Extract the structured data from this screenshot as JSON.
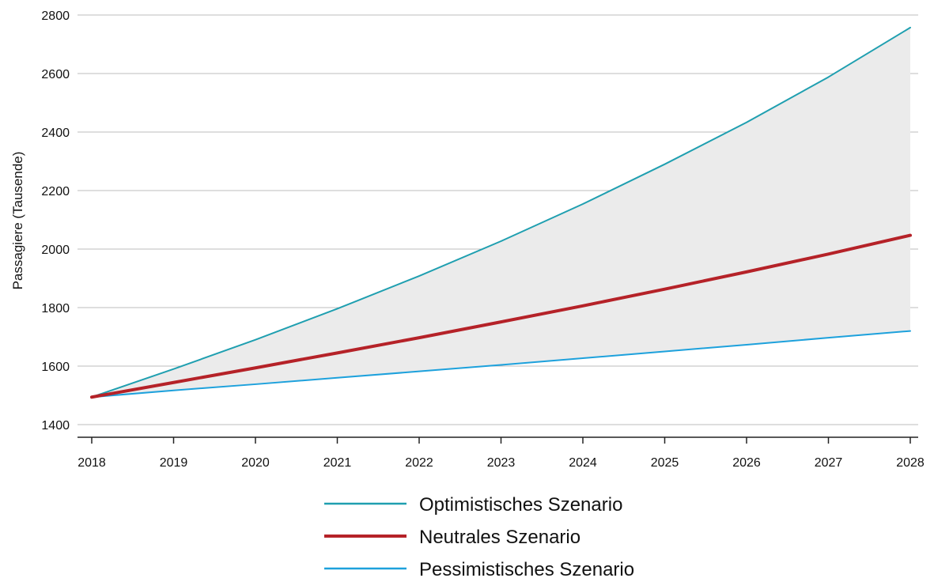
{
  "chart_data": {
    "type": "line",
    "title": "",
    "xlabel": "",
    "ylabel": "Passagiere (Tausende)",
    "x": [
      "2018",
      "2019",
      "2020",
      "2021",
      "2022",
      "2023",
      "2024",
      "2025",
      "2026",
      "2027",
      "2028"
    ],
    "ylim": [
      1400,
      2800
    ],
    "yticks": [
      "1400",
      "1600",
      "1800",
      "2000",
      "2200",
      "2400",
      "2600",
      "2800"
    ],
    "grid": "horizontal",
    "band": "shaded range between optimistic and pessimistic scenario",
    "legend_position": "bottom-center",
    "series": [
      {
        "name": "Optimistisches Szenario",
        "color": "#1f9fb0",
        "width": "thin",
        "values": [
          1494,
          1590,
          1690,
          1796,
          1908,
          2027,
          2154,
          2290,
          2433,
          2588,
          2757
        ]
      },
      {
        "name": "Neutrales Szenario",
        "color": "#b52228",
        "width": "thick",
        "values": [
          1494,
          1544,
          1594,
          1645,
          1697,
          1751,
          1806,
          1863,
          1922,
          1983,
          2047
        ]
      },
      {
        "name": "Pessimistisches Szenario",
        "color": "#1da1dc",
        "width": "thin",
        "values": [
          1494,
          1517,
          1538,
          1560,
          1582,
          1604,
          1627,
          1650,
          1673,
          1697,
          1720
        ]
      }
    ]
  }
}
